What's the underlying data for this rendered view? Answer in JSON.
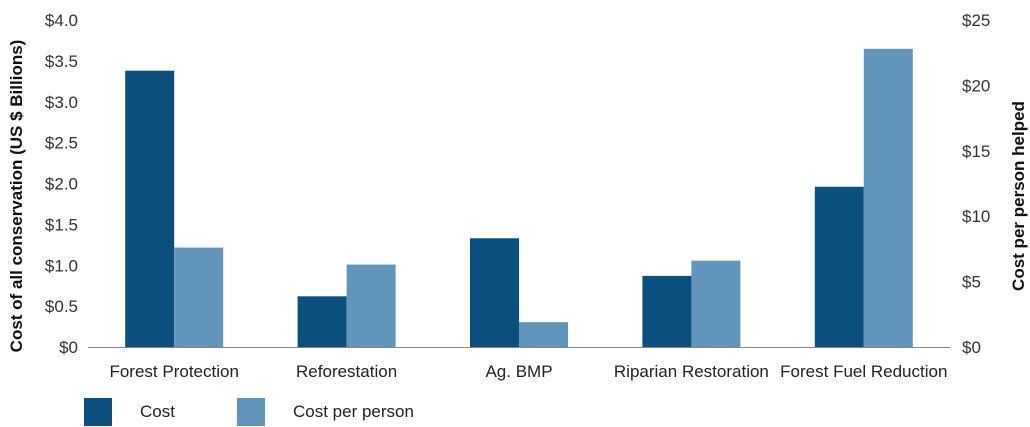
{
  "chart_data": {
    "type": "bar",
    "categories": [
      "Forest Protection",
      "Reforestation",
      "Ag. BMP",
      "Riparian Restoration",
      "Forest Fuel Reduction"
    ],
    "series": [
      {
        "name": "Cost",
        "axis": "left",
        "color": "#0b4f7f",
        "values": [
          3.38,
          0.62,
          1.33,
          0.87,
          1.96
        ]
      },
      {
        "name": "Cost per person",
        "axis": "right",
        "color": "#6196ba",
        "values": [
          7.6,
          6.3,
          1.9,
          6.6,
          22.8
        ]
      }
    ],
    "ylabel": "Cost of all conservation (US $ Billions)",
    "y2label": "Cost per person helped",
    "ylim": [
      0,
      4.0
    ],
    "y2lim": [
      0,
      25
    ],
    "yticks": [
      "$0",
      "$0.5",
      "$1.0",
      "$1.5",
      "$2.0",
      "$2.5",
      "$3.0",
      "$3.5",
      "$4.0"
    ],
    "y2ticks": [
      "$0",
      "$5",
      "$10",
      "$15",
      "$20",
      "$25"
    ],
    "legend_position": "bottom-left",
    "grid": false
  }
}
